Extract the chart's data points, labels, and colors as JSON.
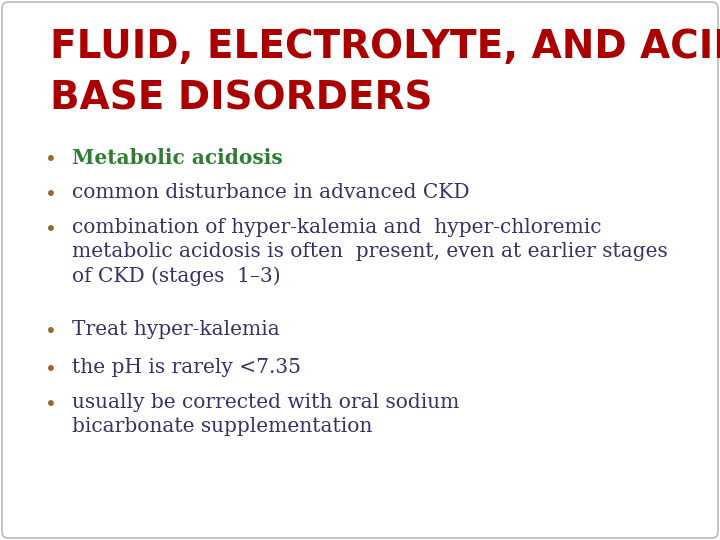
{
  "title_line1": "FLUID, ELECTROLYTE, AND ACID-",
  "title_line2": "BASE DISORDERS",
  "title_color": "#AA0000",
  "background_color": "#FFFFFF",
  "border_color": "#BBBBBB",
  "bullet_dot_color": "#996633",
  "bullet_points": [
    {
      "text": "Metabolic acidosis",
      "color": "#2E7D32",
      "bold": true
    },
    {
      "text": "common disturbance in advanced CKD",
      "color": "#333366",
      "bold": false
    },
    {
      "text": "combination of hyper-kalemia and  hyper-chloremic\nmetabolic acidosis is often  present, even at earlier stages\nof CKD (stages  1–3)",
      "color": "#333366",
      "bold": false
    },
    {
      "text": "Treat hyper-kalemia",
      "color": "#333366",
      "bold": false
    },
    {
      "text": "the pH is rarely <7.35",
      "color": "#333366",
      "bold": false
    },
    {
      "text": "usually be corrected with oral sodium\nbicarbonate supplementation",
      "color": "#333366",
      "bold": false
    }
  ],
  "title_fontsize": 28,
  "bullet_fontsize": 14.5,
  "figsize": [
    7.2,
    5.4
  ],
  "dpi": 100
}
